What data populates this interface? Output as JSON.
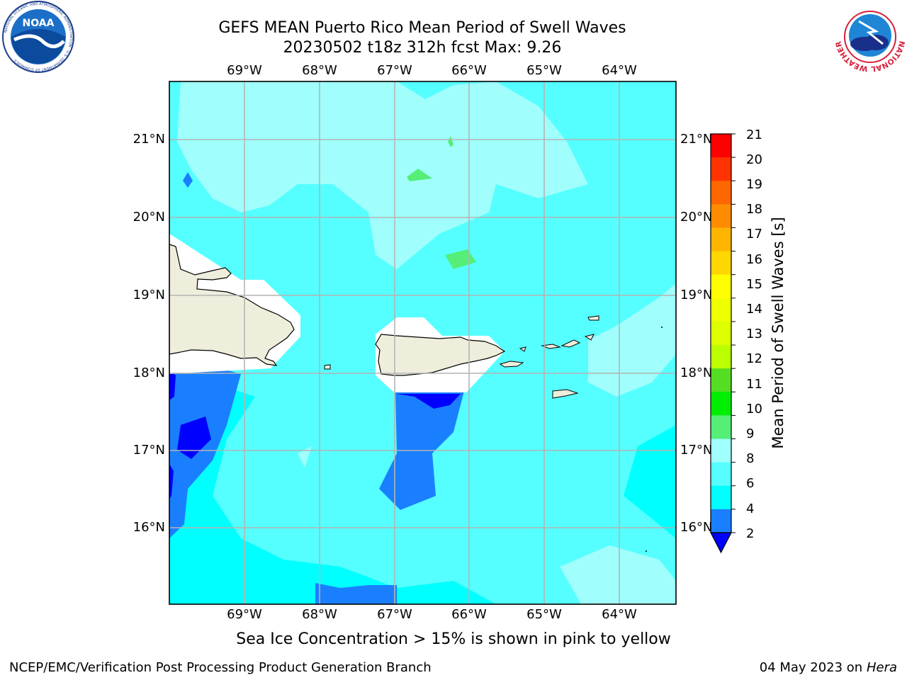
{
  "title": {
    "line1": "GEFS MEAN Puerto Rico Mean Period of Swell Waves",
    "line2": "20230502 t18z 312h fcst   Max: 9.26"
  },
  "map": {
    "lon_labels": [
      "69°W",
      "68°W",
      "67°W",
      "66°W",
      "65°W",
      "64°W"
    ],
    "lat_labels": [
      "21°N",
      "20°N",
      "19°N",
      "18°N",
      "17°N",
      "16°N"
    ],
    "extent": {
      "lon_min": -70.0,
      "lon_max": -63.25,
      "lat_min": 15.0,
      "lat_max": 21.75
    },
    "grid": true,
    "land_color": "#efeedd",
    "coastline_color": "#000000"
  },
  "colorbar": {
    "label": "Mean Period of Swell Waves [s]",
    "ticks": [
      "21",
      "20",
      "19",
      "18",
      "17",
      "16",
      "15",
      "14",
      "13",
      "12",
      "11",
      "10",
      "9",
      "8",
      "6",
      "4",
      "2"
    ],
    "colors": [
      "#ff0000",
      "#ff3300",
      "#ff6600",
      "#ff8c00",
      "#ffb400",
      "#ffd700",
      "#ffff00",
      "#eeff00",
      "#ddff00",
      "#bbff00",
      "#55dd22",
      "#00ee00",
      "#55ee77",
      "#a0fffc",
      "#55ffff",
      "#00ffff",
      "#1a7fff"
    ],
    "extend_color": "#0000ff"
  },
  "footer": {
    "note": "Sea Ice Concentration > 15% is shown in pink to yellow",
    "credit": "NCEP/EMC/Verification Post Processing Product Generation Branch",
    "date": "04 May 2023 on",
    "host": "Hera"
  },
  "logos": {
    "noaa_text": "NOAA",
    "noaa_ring": "NATIONAL OCEANIC AND ATMOSPHERIC ADMINISTRATION · U.S. DEPARTMENT OF COMMERCE",
    "nws_ring": "NATIONAL WEATHER SERVICE"
  }
}
